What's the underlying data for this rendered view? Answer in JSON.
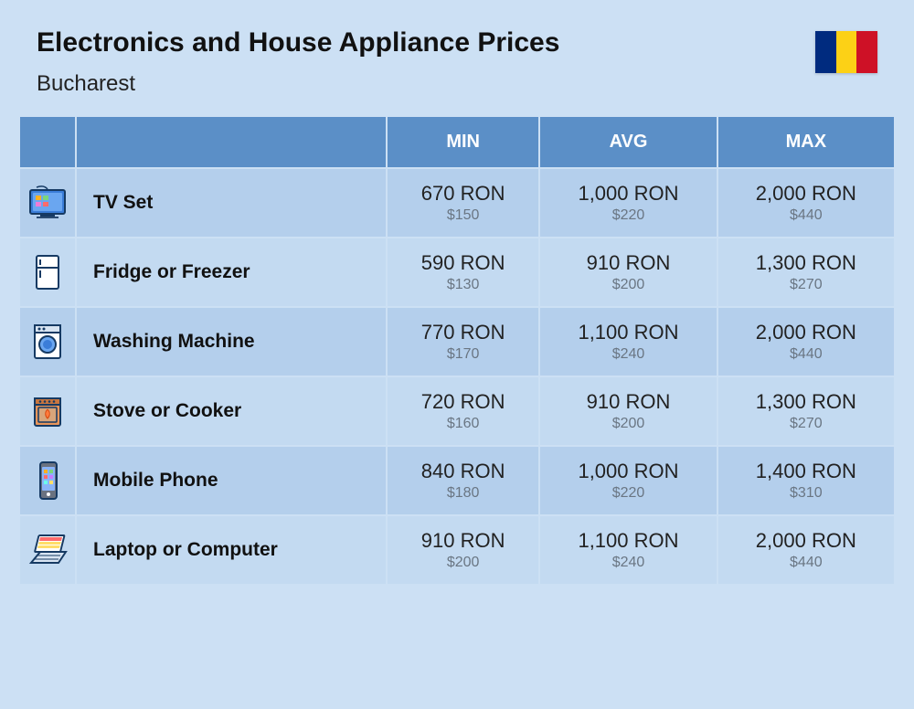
{
  "title": "Electronics and House Appliance Prices",
  "city": "Bucharest",
  "flag_colors": {
    "blue": "#002b7f",
    "yellow": "#fcd116",
    "red": "#ce1126"
  },
  "columns": {
    "min": "MIN",
    "avg": "AVG",
    "max": "MAX"
  },
  "colors": {
    "page_bg": "#cce0f4",
    "header_bg": "#5b8fc7",
    "row_odd": "#b4cfec",
    "row_even": "#c3daf1",
    "text": "#111111",
    "subtext": "#6a7683"
  },
  "fonts": {
    "title_size": 30,
    "title_weight": 800,
    "city_size": 24,
    "city_weight": 400,
    "header_size": 20,
    "header_weight": 700,
    "name_size": 21,
    "name_weight": 800,
    "ron_size": 22,
    "ron_weight": 500,
    "usd_size": 16,
    "usd_weight": 400
  },
  "rows": [
    {
      "icon": "tv",
      "name": "TV Set",
      "min_ron": "670 RON",
      "min_usd": "$150",
      "avg_ron": "1,000 RON",
      "avg_usd": "$220",
      "max_ron": "2,000 RON",
      "max_usd": "$440"
    },
    {
      "icon": "fridge",
      "name": "Fridge or Freezer",
      "min_ron": "590 RON",
      "min_usd": "$130",
      "avg_ron": "910 RON",
      "avg_usd": "$200",
      "max_ron": "1,300 RON",
      "max_usd": "$270"
    },
    {
      "icon": "washer",
      "name": "Washing Machine",
      "min_ron": "770 RON",
      "min_usd": "$170",
      "avg_ron": "1,100 RON",
      "avg_usd": "$240",
      "max_ron": "2,000 RON",
      "max_usd": "$440"
    },
    {
      "icon": "stove",
      "name": "Stove or Cooker",
      "min_ron": "720 RON",
      "min_usd": "$160",
      "avg_ron": "910 RON",
      "avg_usd": "$200",
      "max_ron": "1,300 RON",
      "max_usd": "$270"
    },
    {
      "icon": "phone",
      "name": "Mobile Phone",
      "min_ron": "840 RON",
      "min_usd": "$180",
      "avg_ron": "1,000 RON",
      "avg_usd": "$220",
      "max_ron": "1,400 RON",
      "max_usd": "$310"
    },
    {
      "icon": "laptop",
      "name": "Laptop or Computer",
      "min_ron": "910 RON",
      "min_usd": "$200",
      "avg_ron": "1,100 RON",
      "avg_usd": "$240",
      "max_ron": "2,000 RON",
      "max_usd": "$440"
    }
  ]
}
